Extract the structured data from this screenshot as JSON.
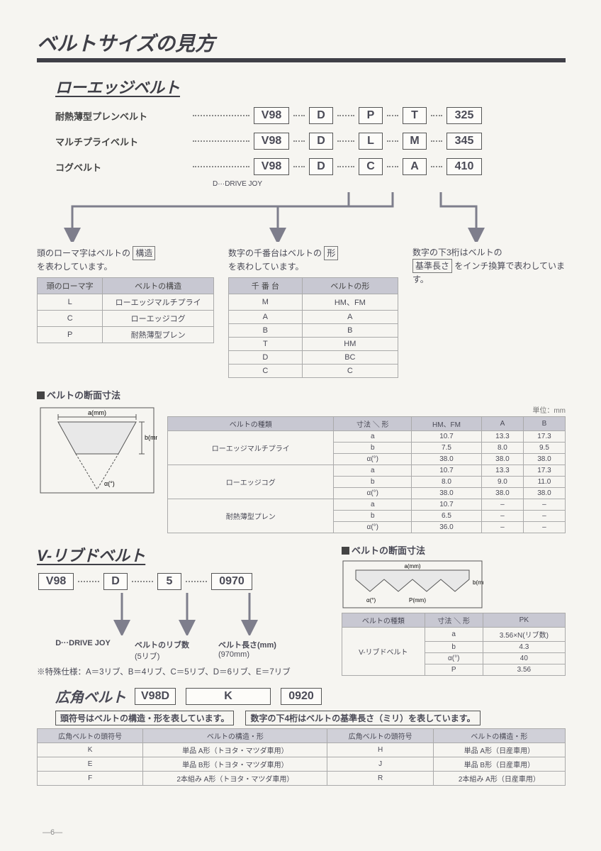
{
  "title": "ベルトサイズの見方",
  "page_num": "—6—",
  "lowedge": {
    "heading": "ローエッジベルト",
    "rows": [
      {
        "label": "耐熱薄型プレンベルト",
        "codes": [
          "V98",
          "D",
          "P",
          "T",
          "325"
        ]
      },
      {
        "label": "マルチプライベルト",
        "codes": [
          "V98",
          "D",
          "L",
          "M",
          "345"
        ]
      },
      {
        "label": "コグベルト",
        "codes": [
          "V98",
          "D",
          "C",
          "A",
          "410"
        ]
      }
    ],
    "drivejoy": "D···DRIVE JOY",
    "explain": {
      "col1": {
        "text_pre": "頭のローマ字はベルトの",
        "boxed": "構造",
        "text_post": "を表わしています。",
        "table": {
          "headers": [
            "頭のローマ字",
            "ベルトの構造"
          ],
          "rows": [
            [
              "L",
              "ローエッジマルチプライ"
            ],
            [
              "C",
              "ローエッジコグ"
            ],
            [
              "P",
              "耐熱薄型プレン"
            ]
          ]
        }
      },
      "col2": {
        "text_pre": "数字の千番台はベルトの",
        "boxed": "形",
        "text_post": "を表わしています。",
        "table": {
          "headers": [
            "千 番 台",
            "ベルトの形"
          ],
          "rows": [
            [
              "M",
              "HM、FM"
            ],
            [
              "A",
              "A"
            ],
            [
              "B",
              "B"
            ],
            [
              "T",
              "HM"
            ],
            [
              "D",
              "BC"
            ],
            [
              "C",
              "C"
            ]
          ]
        }
      },
      "col3": {
        "text_pre": "数字の下3桁はベルトの",
        "boxed": "基準長さ",
        "text_post": "をインチ換算で表わしています。"
      }
    }
  },
  "cross_section": {
    "title": "ベルトの断面寸法",
    "unit": "単位：mm",
    "diagram": {
      "a_label": "a(mm)",
      "b_label": "b(mm)",
      "alpha_label": "α(°)"
    },
    "headers": [
      "ベルトの種類",
      "寸法 ＼ 形",
      "HM、FM",
      "A",
      "B"
    ],
    "groups": [
      {
        "name": "ローエッジマルチプライ",
        "rows": [
          [
            "a",
            "10.7",
            "13.3",
            "17.3"
          ],
          [
            "b",
            "7.5",
            "8.0",
            "9.5"
          ],
          [
            "α(°)",
            "38.0",
            "38.0",
            "38.0"
          ]
        ]
      },
      {
        "name": "ローエッジコグ",
        "rows": [
          [
            "a",
            "10.7",
            "13.3",
            "17.3"
          ],
          [
            "b",
            "8.0",
            "9.0",
            "11.0"
          ],
          [
            "α(°)",
            "38.0",
            "38.0",
            "38.0"
          ]
        ]
      },
      {
        "name": "耐熱薄型プレン",
        "rows": [
          [
            "a",
            "10.7",
            "–",
            "–"
          ],
          [
            "b",
            "6.5",
            "–",
            "–"
          ],
          [
            "α(°)",
            "36.0",
            "–",
            "–"
          ]
        ]
      }
    ]
  },
  "vribbed": {
    "heading": "V-リブドベルト",
    "codes": [
      "V98",
      "D",
      "5",
      "0970"
    ],
    "arrows": [
      {
        "label": "D···DRIVE JOY"
      },
      {
        "label": "ベルトのリブ数",
        "sub": "(5リブ)"
      },
      {
        "label": "ベルト長さ(mm)",
        "sub": "(970mm)"
      }
    ],
    "special_note": "※特殊仕様：A＝3リブ、B＝4リブ、C＝5リブ、D＝6リブ、E＝7リブ",
    "side": {
      "title": "ベルトの断面寸法",
      "diagram": {
        "a_label": "a(mm)",
        "b_label": "b(mm)",
        "alpha_label": "α(°)",
        "p_label": "P(mm)"
      },
      "headers": [
        "ベルトの種類",
        "寸法 ＼ 形",
        "PK"
      ],
      "rows": [
        [
          "V-リブドベルト",
          "a",
          "3.56×N(リブ数)"
        ],
        [
          "",
          "b",
          "4.3"
        ],
        [
          "",
          "α(°)",
          "40"
        ],
        [
          "",
          "P",
          "3.56"
        ]
      ]
    }
  },
  "koukaku": {
    "heading": "広角ベルト",
    "codes": [
      "V98D",
      "K",
      "0920"
    ],
    "note_left": "頭符号はベルトの構造・形を表しています。",
    "note_right": "数字の下4桁はベルトの基準長さ（ミリ）を表しています。",
    "headers": [
      "広角ベルトの頭符号",
      "ベルトの構造・形",
      "広角ベルトの頭符号",
      "ベルトの構造・形"
    ],
    "rows": [
      [
        "K",
        "単品 A形（トヨタ・マツダ車用）",
        "H",
        "単品 A形（日産車用）"
      ],
      [
        "E",
        "単品 B形（トヨタ・マツダ車用）",
        "J",
        "単品 B形（日産車用）"
      ],
      [
        "F",
        "2本組み A形（トヨタ・マツダ車用）",
        "R",
        "2本組み A形（日産車用）"
      ]
    ]
  },
  "colors": {
    "arrow": "#7e7e8c",
    "stroke": "#555"
  }
}
